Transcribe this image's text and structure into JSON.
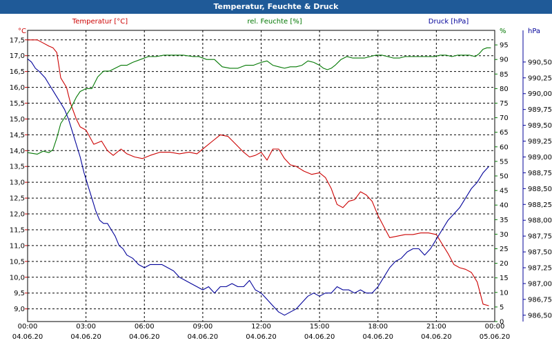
{
  "window": {
    "title": "Temperatur, Feuchte & Druck"
  },
  "colors": {
    "background": "#ffffff",
    "title_bar": "#1f5a98",
    "temperature": "#cc0000",
    "humidity": "#007700",
    "pressure": "#000099",
    "grid": "#000000",
    "text": "#000000"
  },
  "chart_data": {
    "type": "line",
    "title": "Temperatur, Feuchte & Druck",
    "grid": true,
    "legend_position": "top",
    "x_range": [
      "04.06.20 00:00",
      "05.06.20 00:00"
    ],
    "x_ticks": [
      {
        "time": "00:00",
        "date": "04.06.20",
        "hour": 0
      },
      {
        "time": "03:00",
        "date": "04.06.20",
        "hour": 3
      },
      {
        "time": "06:00",
        "date": "04.06.20",
        "hour": 6
      },
      {
        "time": "09:00",
        "date": "04.06.20",
        "hour": 9
      },
      {
        "time": "12:00",
        "date": "04.06.20",
        "hour": 12
      },
      {
        "time": "15:00",
        "date": "04.06.20",
        "hour": 15
      },
      {
        "time": "18:00",
        "date": "04.06.20",
        "hour": 18
      },
      {
        "time": "21:00",
        "date": "04.06.20",
        "hour": 21
      },
      {
        "time": "00:00",
        "date": "05.06.20",
        "hour": 24
      }
    ],
    "axes": {
      "temperature": {
        "unit": "°C",
        "label": "Temperatur [°C]",
        "ylim": [
          8.6,
          17.8
        ],
        "ticks": [
          "17,5",
          "17,0",
          "16,5",
          "16,0",
          "15,5",
          "15,0",
          "14,5",
          "14,0",
          "13,5",
          "13,0",
          "12,5",
          "12,0",
          "11,5",
          "11,0",
          "10,5",
          "10,0",
          "9,5",
          "9,0"
        ],
        "tick_values": [
          17.5,
          17.0,
          16.5,
          16.0,
          15.5,
          15.0,
          14.5,
          14.0,
          13.5,
          13.0,
          12.5,
          12.0,
          11.5,
          11.0,
          10.5,
          10.0,
          9.5,
          9.0
        ]
      },
      "humidity": {
        "unit": "%",
        "label": "rel. Feuchte [%]",
        "ylim": [
          0,
          100
        ],
        "ticks": [
          "95",
          "90",
          "85",
          "80",
          "75",
          "70",
          "65",
          "60",
          "55",
          "50",
          "45",
          "40",
          "35",
          "30",
          "25",
          "20",
          "15",
          "10",
          "5",
          "0"
        ],
        "tick_values": [
          95,
          90,
          85,
          80,
          75,
          70,
          65,
          60,
          55,
          50,
          45,
          40,
          35,
          30,
          25,
          20,
          15,
          10,
          5,
          0
        ]
      },
      "pressure": {
        "unit": "hPa",
        "label": "Druck [hPa]",
        "ylim": [
          986.4,
          991.0
        ],
        "ticks": [
          "990,50",
          "990,25",
          "990,00",
          "989,75",
          "989,50",
          "989,25",
          "989,00",
          "988,75",
          "988,50",
          "988,25",
          "988,00",
          "987,75",
          "987,50",
          "987,25",
          "987,00",
          "986,75",
          "986,50"
        ],
        "tick_values": [
          990.5,
          990.25,
          990.0,
          989.75,
          989.5,
          989.25,
          989.0,
          988.75,
          988.5,
          988.25,
          988.0,
          987.75,
          987.5,
          987.25,
          987.0,
          986.75,
          986.5
        ]
      }
    },
    "series": [
      {
        "name": "Temperatur [°C]",
        "axis": "temperature",
        "hours": [
          0,
          0.5,
          0.8,
          1.1,
          1.3,
          1.5,
          1.7,
          2.0,
          2.2,
          2.5,
          2.7,
          3.0,
          3.4,
          3.8,
          4.1,
          4.4,
          4.8,
          5.1,
          5.5,
          5.9,
          6.3,
          6.8,
          7.3,
          7.8,
          8.3,
          8.7,
          9.1,
          9.5,
          9.9,
          10.3,
          10.7,
          11.1,
          11.4,
          11.7,
          12.0,
          12.3,
          12.6,
          12.9,
          13.2,
          13.5,
          13.8,
          14.2,
          14.6,
          15.0,
          15.3,
          15.6,
          15.9,
          16.2,
          16.5,
          16.8,
          17.1,
          17.4,
          17.7,
          18.0,
          18.3,
          18.6,
          19.0,
          19.4,
          19.8,
          20.2,
          20.6,
          21.0,
          21.3,
          21.6,
          21.9,
          22.2,
          22.5,
          22.8,
          23.1,
          23.4,
          23.7
        ],
        "values": [
          17.5,
          17.5,
          17.4,
          17.3,
          17.25,
          17.1,
          16.3,
          16.0,
          15.5,
          15.0,
          14.75,
          14.65,
          14.2,
          14.3,
          14.0,
          13.85,
          14.05,
          13.9,
          13.8,
          13.75,
          13.85,
          13.95,
          13.95,
          13.9,
          13.95,
          13.9,
          14.1,
          14.3,
          14.5,
          14.45,
          14.2,
          13.95,
          13.8,
          13.85,
          13.95,
          13.7,
          14.05,
          14.05,
          13.75,
          13.55,
          13.5,
          13.35,
          13.25,
          13.3,
          13.15,
          12.8,
          12.3,
          12.2,
          12.4,
          12.45,
          12.7,
          12.6,
          12.4,
          11.95,
          11.6,
          11.25,
          11.3,
          11.35,
          11.35,
          11.4,
          11.4,
          11.35,
          11.05,
          10.75,
          10.4,
          10.3,
          10.25,
          10.15,
          9.85,
          9.15,
          9.1
        ]
      },
      {
        "name": "rel. Feuchte [%]",
        "axis": "humidity",
        "hours": [
          0,
          0.5,
          0.8,
          1.1,
          1.3,
          1.5,
          1.7,
          2.0,
          2.2,
          2.5,
          2.7,
          3.0,
          3.3,
          3.6,
          3.9,
          4.2,
          4.5,
          4.8,
          5.1,
          5.4,
          5.8,
          6.2,
          6.6,
          7.0,
          7.5,
          8.0,
          8.5,
          8.8,
          9.2,
          9.6,
          10.0,
          10.4,
          10.8,
          11.2,
          11.6,
          12.0,
          12.3,
          12.6,
          12.9,
          13.2,
          13.5,
          13.8,
          14.1,
          14.4,
          14.7,
          15.0,
          15.2,
          15.4,
          15.6,
          15.8,
          16.1,
          16.4,
          16.7,
          17.0,
          17.3,
          17.6,
          17.9,
          18.2,
          18.5,
          18.8,
          19.1,
          19.4,
          19.7,
          20.0,
          20.3,
          20.6,
          20.9,
          21.2,
          21.5,
          21.8,
          22.1,
          22.4,
          22.7,
          23.0,
          23.2,
          23.4,
          23.6,
          23.8
        ],
        "values": [
          58,
          57.5,
          58.5,
          58,
          59,
          63,
          68,
          71,
          73,
          77,
          79,
          80,
          80,
          84,
          86,
          86,
          87,
          88,
          88,
          89,
          90,
          91,
          91,
          91.5,
          91.5,
          91.5,
          91,
          91,
          90,
          90,
          87.5,
          87,
          87,
          88,
          88,
          89,
          89.5,
          88,
          87.5,
          87,
          87.5,
          87.5,
          88,
          89.5,
          89,
          88,
          87,
          86.5,
          87,
          88,
          90,
          91,
          90.5,
          90.5,
          90.5,
          91,
          91.5,
          91.5,
          91,
          90.5,
          90.5,
          91,
          91,
          91,
          91,
          91,
          91,
          91.5,
          91.5,
          91,
          91.5,
          91.5,
          91.5,
          91,
          92,
          93.5,
          94,
          94
        ]
      },
      {
        "name": "Druck [hPa]",
        "axis": "pressure",
        "hours": [
          0,
          0.2,
          0.4,
          0.6,
          0.9,
          1.1,
          1.3,
          1.5,
          1.7,
          1.9,
          2.1,
          2.3,
          2.5,
          2.7,
          2.9,
          3.1,
          3.3,
          3.5,
          3.7,
          3.9,
          4.1,
          4.3,
          4.5,
          4.7,
          4.9,
          5.1,
          5.4,
          5.7,
          6.0,
          6.3,
          6.6,
          6.9,
          7.2,
          7.5,
          7.8,
          8.1,
          8.4,
          8.7,
          9.0,
          9.3,
          9.6,
          9.9,
          10.2,
          10.5,
          10.8,
          11.1,
          11.4,
          11.7,
          12.0,
          12.3,
          12.6,
          12.9,
          13.2,
          13.5,
          13.8,
          14.1,
          14.4,
          14.7,
          15.0,
          15.3,
          15.6,
          15.9,
          16.2,
          16.5,
          16.8,
          17.1,
          17.4,
          17.7,
          18.0,
          18.3,
          18.6,
          18.9,
          19.2,
          19.5,
          19.8,
          20.1,
          20.4,
          20.7,
          21.0,
          21.3,
          21.6,
          21.9,
          22.2,
          22.5,
          22.8,
          23.1,
          23.4,
          23.7
        ],
        "values": [
          990.55,
          990.5,
          990.4,
          990.35,
          990.25,
          990.15,
          990.05,
          989.95,
          989.85,
          989.75,
          989.6,
          989.4,
          989.2,
          989.0,
          988.75,
          988.55,
          988.35,
          988.15,
          988.0,
          987.95,
          987.95,
          987.85,
          987.75,
          987.6,
          987.55,
          987.45,
          987.4,
          987.3,
          987.25,
          987.3,
          987.3,
          987.3,
          987.25,
          987.2,
          987.1,
          987.05,
          987.0,
          986.95,
          986.9,
          986.95,
          986.85,
          986.95,
          986.95,
          987.0,
          986.95,
          986.95,
          987.05,
          986.9,
          986.85,
          986.75,
          986.65,
          986.55,
          986.5,
          986.55,
          986.6,
          986.7,
          986.8,
          986.85,
          986.8,
          986.85,
          986.85,
          986.95,
          986.9,
          986.9,
          986.85,
          986.9,
          986.85,
          986.85,
          986.95,
          987.1,
          987.25,
          987.35,
          987.4,
          987.5,
          987.55,
          987.55,
          987.45,
          987.55,
          987.7,
          987.85,
          988.0,
          988.1,
          988.2,
          988.35,
          988.5,
          988.6,
          988.75,
          988.85
        ]
      }
    ]
  }
}
